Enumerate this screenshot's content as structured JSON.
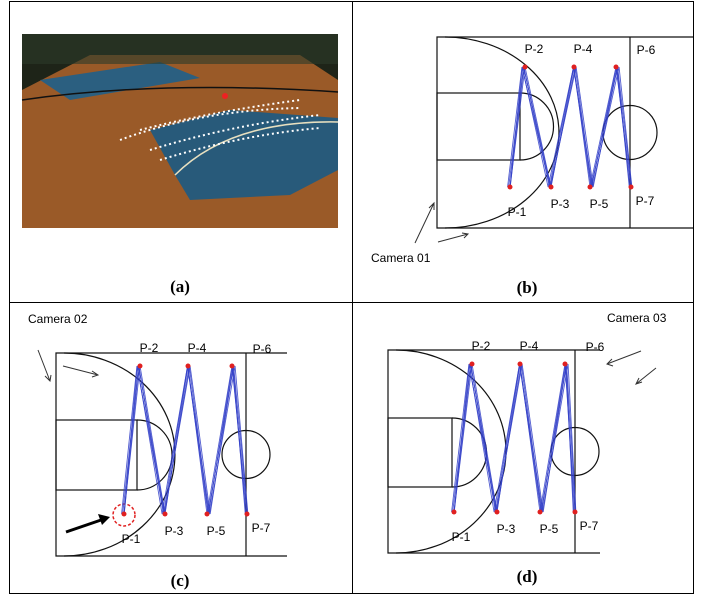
{
  "panels": [
    {
      "caption": "(a)"
    },
    {
      "caption": "(b)",
      "camera": "Camera 01",
      "points": [
        "P-1",
        "P-2",
        "P-3",
        "P-4",
        "P-5",
        "P-6",
        "P-7"
      ]
    },
    {
      "caption": "(c)",
      "camera": "Camera 02",
      "points": [
        "P-1",
        "P-2",
        "P-3",
        "P-4",
        "P-5",
        "P-6",
        "P-7"
      ]
    },
    {
      "caption": "(d)",
      "camera": "Camera 03",
      "points": [
        "P-1",
        "P-2",
        "P-3",
        "P-4",
        "P-5",
        "P-6",
        "P-7"
      ]
    }
  ]
}
